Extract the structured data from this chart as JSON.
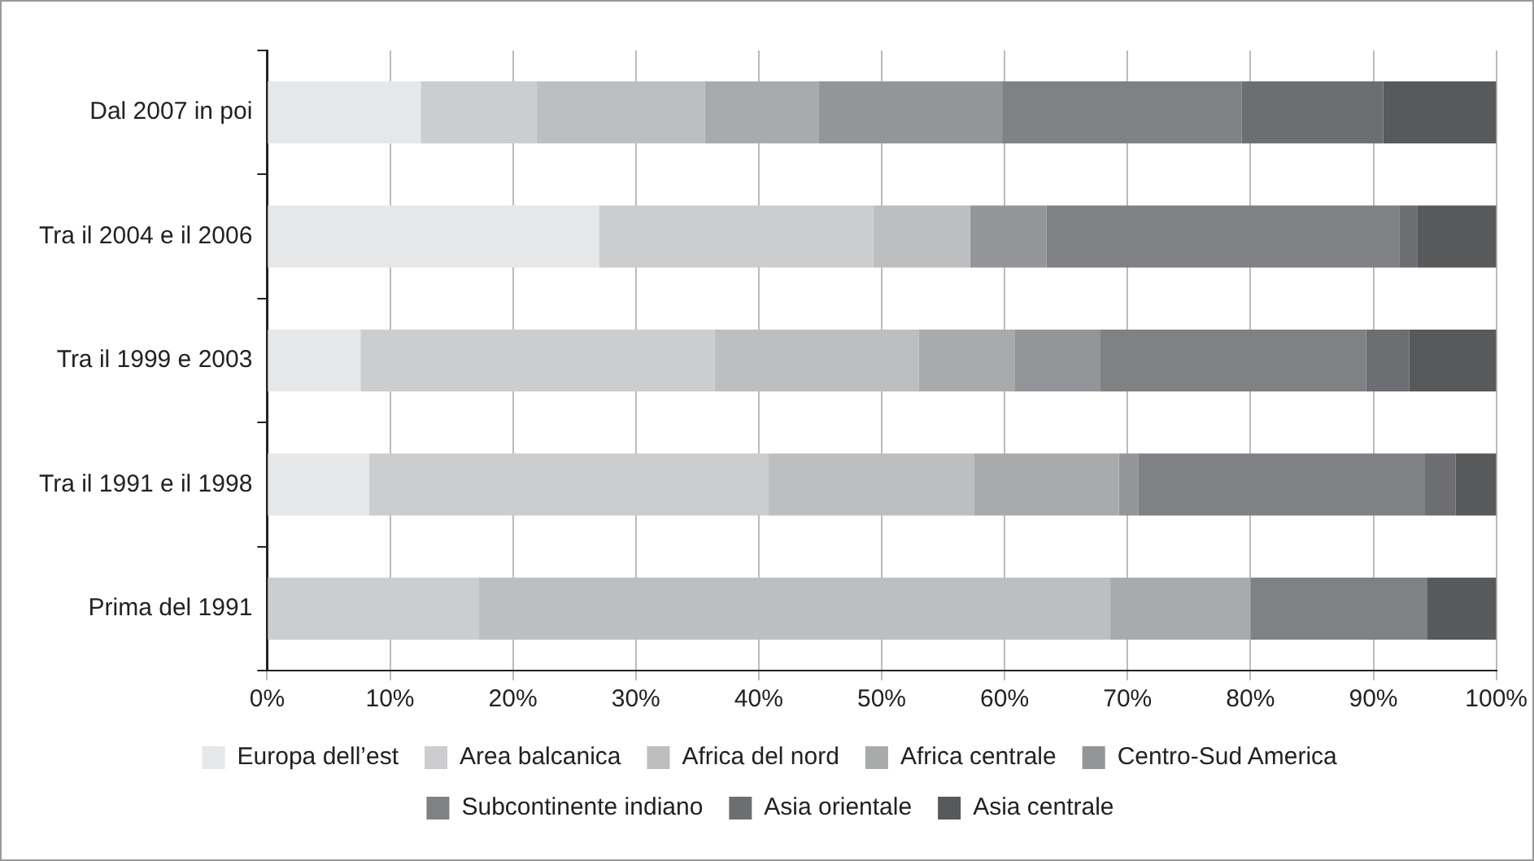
{
  "chart_data": {
    "type": "bar",
    "orientation": "horizontal",
    "stacked": true,
    "categories": [
      "Dal 2007 in poi",
      "Tra il 2004 e il 2006",
      "Tra il 1999 e 2003",
      "Tra il 1991 e il 1998",
      "Prima del 1991"
    ],
    "series": [
      {
        "name": "Europa dell’est",
        "color": "#e6e7e8",
        "values": [
          12.5,
          27.0,
          7.6,
          8.3,
          0
        ]
      },
      {
        "name": "Area balcanica",
        "color": "#cbcdce",
        "values": [
          9.4,
          22.3,
          28.8,
          32.5,
          17.2
        ]
      },
      {
        "name": "Africa del nord",
        "color": "#bcbec0",
        "values": [
          13.7,
          7.9,
          16.6,
          16.7,
          51.4
        ]
      },
      {
        "name": "Africa centrale",
        "color": "#a8aaac",
        "values": [
          9.3,
          0,
          7.8,
          11.8,
          11.4
        ]
      },
      {
        "name": "Centro-Sud America",
        "color": "#939598",
        "values": [
          14.9,
          6.2,
          7.0,
          1.6,
          0
        ]
      },
      {
        "name": "Subcontinente indiano",
        "color": "#808184",
        "values": [
          19.5,
          28.7,
          21.6,
          23.3,
          14.4
        ]
      },
      {
        "name": "Asia orientale",
        "color": "#6d6e71",
        "values": [
          11.5,
          1.5,
          3.5,
          2.5,
          0
        ]
      },
      {
        "name": "Asia centrale",
        "color": "#58595b",
        "values": [
          9.2,
          6.4,
          7.1,
          3.3,
          5.6
        ]
      }
    ],
    "xlim": [
      0,
      100
    ],
    "xticks": [
      {
        "value": 0,
        "label": "0%"
      },
      {
        "value": 10,
        "label": "10%"
      },
      {
        "value": 20,
        "label": "20%"
      },
      {
        "value": 30,
        "label": "30%"
      },
      {
        "value": 40,
        "label": "40%"
      },
      {
        "value": 50,
        "label": "50%"
      },
      {
        "value": 60,
        "label": "60%"
      },
      {
        "value": 70,
        "label": "70%"
      },
      {
        "value": 80,
        "label": "80%"
      },
      {
        "value": 90,
        "label": "90%"
      },
      {
        "value": 100,
        "label": "100%"
      }
    ],
    "grid": "x",
    "legend": "bottom"
  }
}
